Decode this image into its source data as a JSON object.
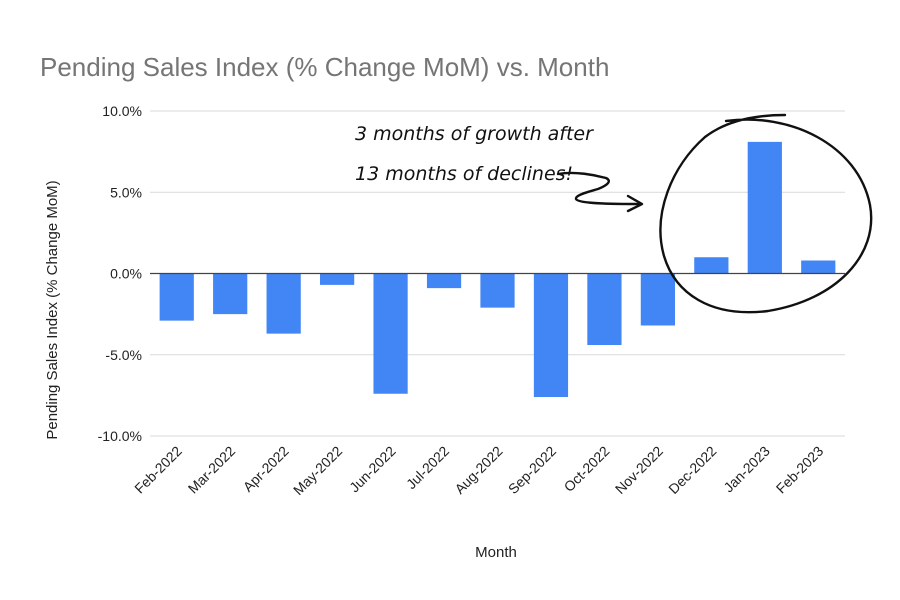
{
  "chart_data": {
    "type": "bar",
    "title": "Pending Sales Index (% Change MoM) vs. Month",
    "xlabel": "Month",
    "ylabel": "Pending Sales Index (% Change MoM)",
    "categories": [
      "Feb-2022",
      "Mar-2022",
      "Apr-2022",
      "May-2022",
      "Jun-2022",
      "Jul-2022",
      "Aug-2022",
      "Sep-2022",
      "Oct-2022",
      "Nov-2022",
      "Dec-2022",
      "Jan-2023",
      "Feb-2023"
    ],
    "values": [
      -2.9,
      -2.5,
      -3.7,
      -0.7,
      -7.4,
      -0.9,
      -2.1,
      -7.6,
      -4.4,
      -3.2,
      1.0,
      8.1,
      0.8
    ],
    "ylim": [
      -10,
      10
    ],
    "yticks": [
      "10.0%",
      "5.0%",
      "0.0%",
      "-5.0%",
      "-10.0%"
    ],
    "ytick_values": [
      10,
      5,
      0,
      -5,
      -10
    ],
    "grid": true,
    "bar_color": "#4285f4",
    "annotation": {
      "line1": "3 months of growth after",
      "line2": "13 months of declines!"
    }
  }
}
